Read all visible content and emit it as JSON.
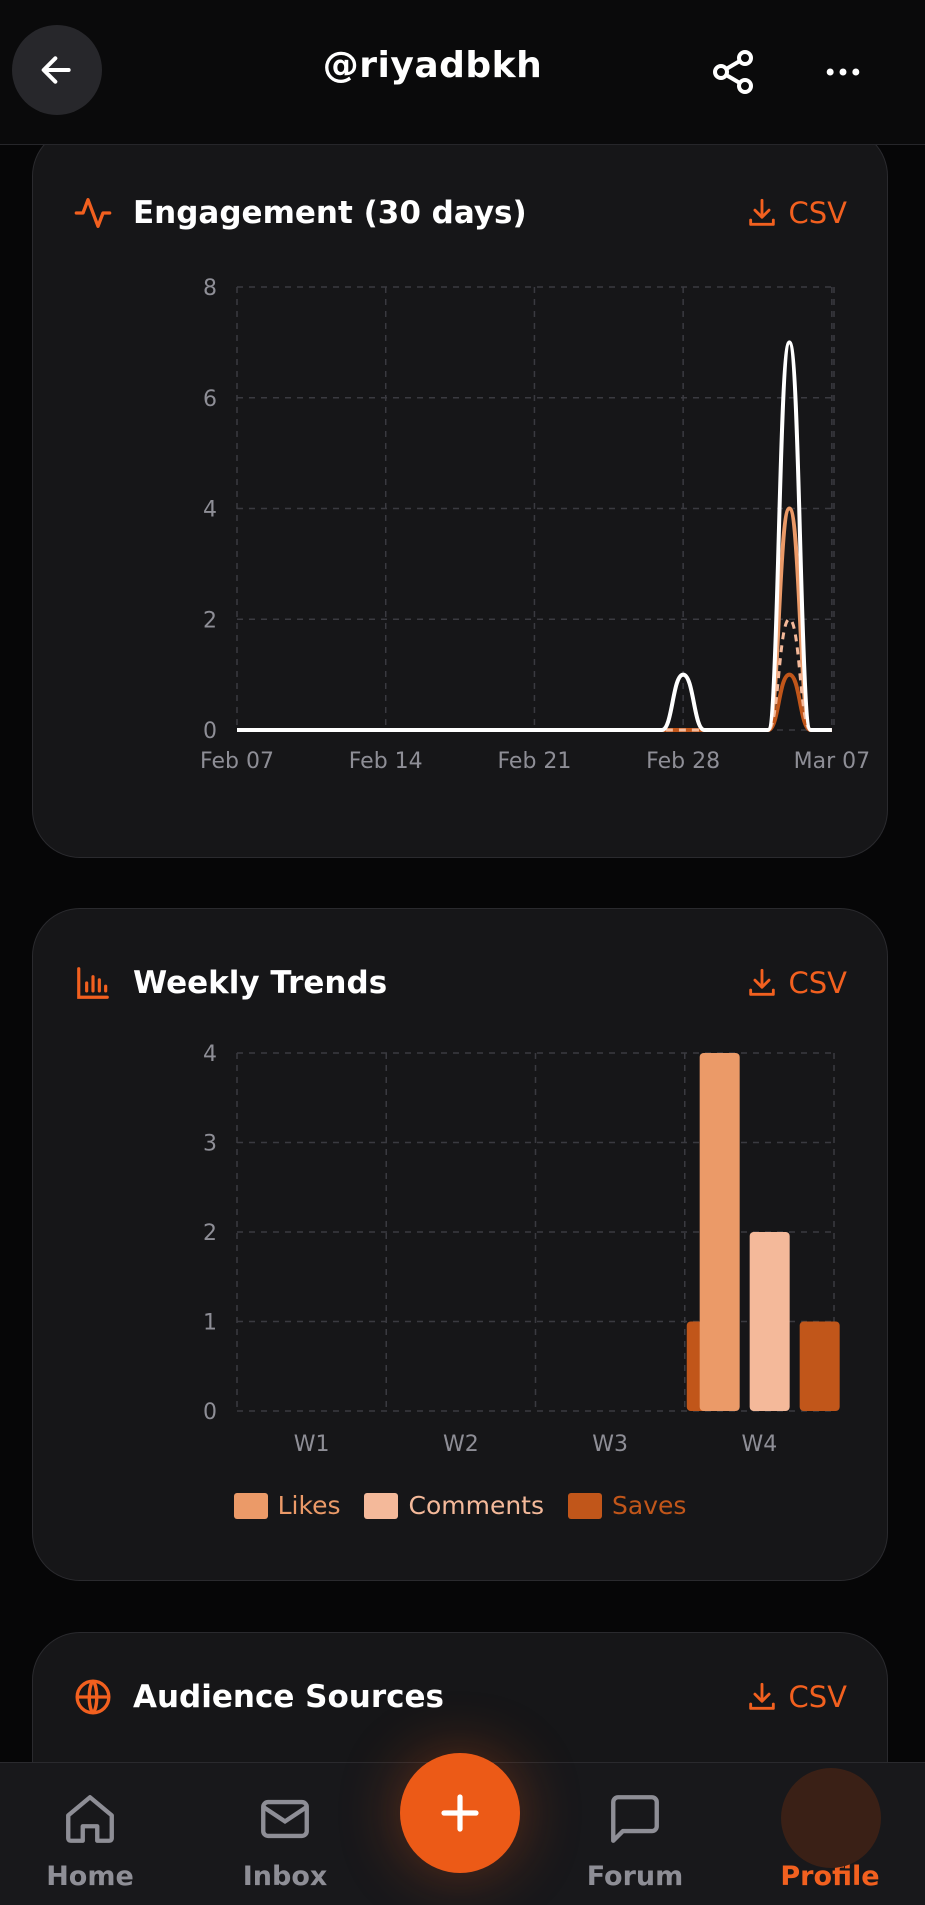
{
  "header": {
    "title": "@riyadbkh"
  },
  "engagement": {
    "title": "Engagement (30 days)",
    "csv_label": "CSV"
  },
  "weekly": {
    "title": "Weekly Trends",
    "csv_label": "CSV"
  },
  "audience": {
    "title": "Audience Sources",
    "csv_label": "CSV"
  },
  "nav": {
    "home": "Home",
    "inbox": "Inbox",
    "forum": "Forum",
    "profile": "Profile"
  },
  "colors": {
    "accent": "#f2601f",
    "likes": "#eb9a68",
    "comments": "#f4b99a",
    "saves": "#c1561a",
    "total": "#ffffff"
  },
  "chart_data": [
    {
      "type": "line",
      "title": "Engagement (30 days)",
      "x_ticks": [
        "Feb 07",
        "Feb 14",
        "Feb 21",
        "Feb 28",
        "Mar 07"
      ],
      "y_ticks": [
        0,
        2,
        4,
        6,
        8
      ],
      "ylim": [
        0,
        8
      ],
      "xlim": [
        "Feb 07",
        "Mar 07"
      ],
      "grid": true,
      "series": [
        {
          "style": "solid-white",
          "points": [
            [
              "Feb 07",
              0
            ],
            [
              "Feb 27",
              0
            ],
            [
              "Feb 28",
              1
            ],
            [
              "Mar 01",
              0
            ],
            [
              "Mar 04",
              0
            ],
            [
              "Mar 05",
              7
            ],
            [
              "Mar 06",
              0
            ],
            [
              "Mar 07",
              0
            ]
          ]
        },
        {
          "style": "solid-orange",
          "points": [
            [
              "Feb 07",
              0
            ],
            [
              "Mar 04",
              0
            ],
            [
              "Mar 05",
              4
            ],
            [
              "Mar 06",
              0
            ],
            [
              "Mar 07",
              0
            ]
          ]
        },
        {
          "style": "dashed-peach",
          "points": [
            [
              "Feb 07",
              0
            ],
            [
              "Mar 04",
              0
            ],
            [
              "Mar 05",
              2
            ],
            [
              "Mar 06",
              0
            ],
            [
              "Mar 07",
              0
            ]
          ]
        },
        {
          "style": "solid-dark-orange",
          "points": [
            [
              "Feb 07",
              0
            ],
            [
              "Mar 04",
              0
            ],
            [
              "Mar 05",
              1
            ],
            [
              "Mar 06",
              0
            ],
            [
              "Mar 07",
              0
            ]
          ]
        }
      ]
    },
    {
      "type": "bar",
      "title": "Weekly Trends",
      "categories": [
        "W1",
        "W2",
        "W3",
        "W4"
      ],
      "y_ticks": [
        0,
        1,
        2,
        3,
        4
      ],
      "ylim": [
        0,
        4
      ],
      "grid": true,
      "legend_position": "bottom",
      "series": [
        {
          "name": "Likes",
          "values": [
            0,
            0,
            0,
            4
          ]
        },
        {
          "name": "Comments",
          "values": [
            0,
            0,
            0,
            2
          ]
        },
        {
          "name": "Saves",
          "values": [
            0,
            0,
            1,
            1
          ]
        }
      ]
    }
  ]
}
